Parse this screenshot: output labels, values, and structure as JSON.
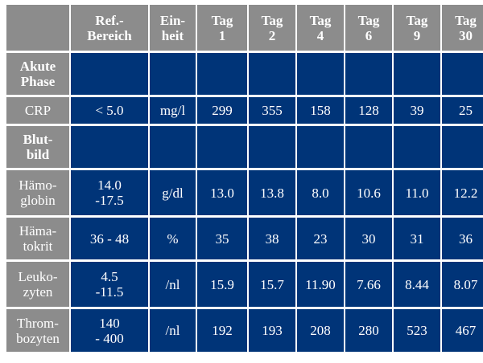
{
  "header": [
    "",
    "Ref.-\nBereich",
    "Ein-\nheit",
    "Tag\n1",
    "Tag\n2",
    "Tag\n4",
    "Tag\n6",
    "Tag\n9",
    "Tag\n30"
  ],
  "rows": [
    {
      "label": "Akute\nPhase",
      "section": true,
      "cells": [
        "",
        "",
        "",
        "",
        "",
        "",
        "",
        ""
      ]
    },
    {
      "label": "CRP",
      "section": false,
      "cells": [
        "< 5.0",
        "mg/l",
        "299",
        "355",
        "158",
        "128",
        "39",
        "25"
      ]
    },
    {
      "label": "Blut-\nbild",
      "section": true,
      "cells": [
        "",
        "",
        "",
        "",
        "",
        "",
        "",
        ""
      ]
    },
    {
      "label": "Hämo-\nglobin",
      "section": false,
      "cells": [
        "14.0\n-17.5",
        "g/dl",
        "13.0",
        "13.8",
        "8.0",
        "10.6",
        "11.0",
        "12.2"
      ]
    },
    {
      "label": "Häma-\ntokrit",
      "section": false,
      "cells": [
        "36 - 48",
        "%",
        "35",
        "38",
        "23",
        "30",
        "31",
        "36"
      ]
    },
    {
      "label": "Leuko-\nzyten",
      "section": false,
      "cells": [
        "4.5\n-11.5",
        "/nl",
        "15.9",
        "15.7",
        "11.90",
        "7.66",
        "8.44",
        "8.07"
      ]
    },
    {
      "label": "Throm-\nbozyten",
      "section": false,
      "cells": [
        "140\n- 400",
        "/nl",
        "192",
        "193",
        "208",
        "280",
        "523",
        "467"
      ]
    }
  ],
  "colors": {
    "header_bg": "#8c8c8c",
    "cell_bg": "#003478",
    "text": "#ffffff"
  }
}
